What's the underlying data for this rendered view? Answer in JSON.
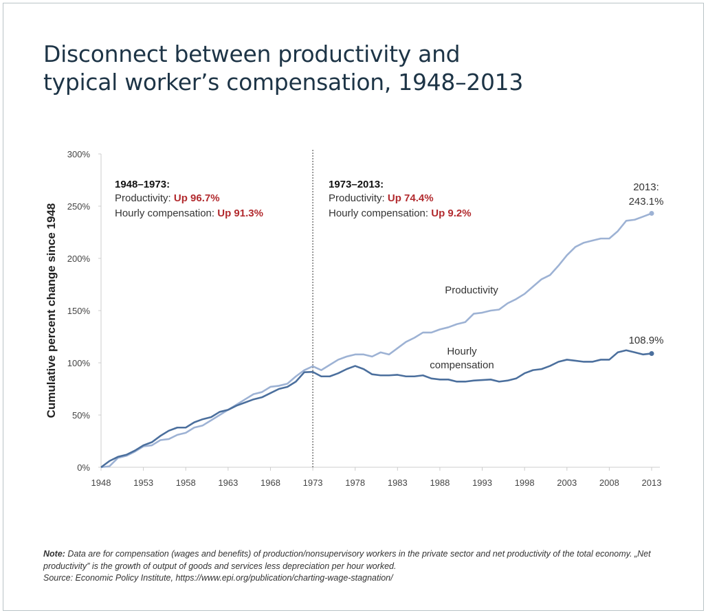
{
  "title_line1": "Disconnect between productivity and",
  "title_line2": "typical worker’s compensation, 1948–2013",
  "note_label": "Note:",
  "note_text": " Data are for compensation (wages and benefits) of production/nonsupervisory workers in the private sector and net productivity of the total economy. „Net productivity” is the growth of output of goods and services less depreciation per hour worked.",
  "source_text": "Source: Economic Policy Institute, https://www.epi.org/publication/charting-wage-stagnation/",
  "colors": {
    "productivity": "#9db2d4",
    "compensation": "#4b6f9d",
    "highlight": "#b22a2e",
    "title": "#1d3446"
  },
  "chart_data": {
    "type": "line",
    "title": "Disconnect between productivity and typical worker’s compensation, 1948–2013",
    "xlabel": "",
    "ylabel": "Cumulative percent change since 1948",
    "xlim": [
      1948,
      2013
    ],
    "ylim": [
      0,
      300
    ],
    "xticks": [
      "1948",
      "1953",
      "1958",
      "1963",
      "1968",
      "1973",
      "1978",
      "1983",
      "1988",
      "1993",
      "1998",
      "2003",
      "2008",
      "2013"
    ],
    "yticks": [
      "0%",
      "50%",
      "100%",
      "150%",
      "200%",
      "250%",
      "300%"
    ],
    "grid": false,
    "x": [
      1948,
      1949,
      1950,
      1951,
      1952,
      1953,
      1954,
      1955,
      1956,
      1957,
      1958,
      1959,
      1960,
      1961,
      1962,
      1963,
      1964,
      1965,
      1966,
      1967,
      1968,
      1969,
      1970,
      1971,
      1972,
      1973,
      1974,
      1975,
      1976,
      1977,
      1978,
      1979,
      1980,
      1981,
      1982,
      1983,
      1984,
      1985,
      1986,
      1987,
      1988,
      1989,
      1990,
      1991,
      1992,
      1993,
      1994,
      1995,
      1996,
      1997,
      1998,
      1999,
      2000,
      2001,
      2002,
      2003,
      2004,
      2005,
      2006,
      2007,
      2008,
      2009,
      2010,
      2011,
      2012,
      2013
    ],
    "series": [
      {
        "name": "Productivity",
        "values": [
          0,
          1,
          9,
          11,
          15,
          20,
          21,
          26,
          27,
          31,
          33,
          38,
          40,
          45,
          50,
          55,
          60,
          65,
          70,
          72,
          77,
          78,
          80,
          87,
          93,
          96.7,
          93,
          98,
          103,
          106,
          108,
          108,
          106,
          110,
          108,
          114,
          120,
          124,
          129,
          129,
          132,
          134,
          137,
          139,
          147,
          148,
          150,
          151,
          157,
          161,
          166,
          173,
          180,
          184,
          193,
          203,
          211,
          215,
          217,
          219,
          219,
          226,
          236,
          237,
          240,
          243.1
        ]
      },
      {
        "name": "Hourly compensation",
        "values": [
          0,
          6,
          10,
          12,
          16,
          21,
          24,
          30,
          35,
          38,
          38,
          43,
          46,
          48,
          53,
          55,
          59,
          62,
          65,
          67,
          71,
          75,
          77,
          82,
          91,
          91.3,
          87,
          87,
          90,
          94,
          97,
          94,
          89,
          88,
          88,
          88.5,
          87,
          87,
          88,
          85,
          84,
          84,
          82,
          82,
          83,
          83.5,
          84,
          82,
          83,
          85,
          90,
          93,
          94,
          97,
          101,
          103,
          102,
          101,
          101,
          103,
          103,
          110,
          112,
          110,
          108,
          108.9
        ]
      }
    ],
    "divider_year": 1973,
    "series_labels": {
      "productivity": "Productivity",
      "compensation_line1": "Hourly",
      "compensation_line2": "compensation"
    },
    "end_labels": {
      "productivity_year": "2013:",
      "productivity_value": "243.1%",
      "compensation_value": "108.9%"
    },
    "annotations": {
      "left": {
        "heading": "1948–1973:",
        "prod_label": "Productivity: ",
        "prod_value": "Up 96.7%",
        "comp_label": "Hourly compensation: ",
        "comp_value": "Up 91.3%"
      },
      "right": {
        "heading": "1973–2013:",
        "prod_label": "Productivity: ",
        "prod_value": "Up 74.4%",
        "comp_label": "Hourly compensation: ",
        "comp_value": "Up 9.2%"
      }
    }
  }
}
